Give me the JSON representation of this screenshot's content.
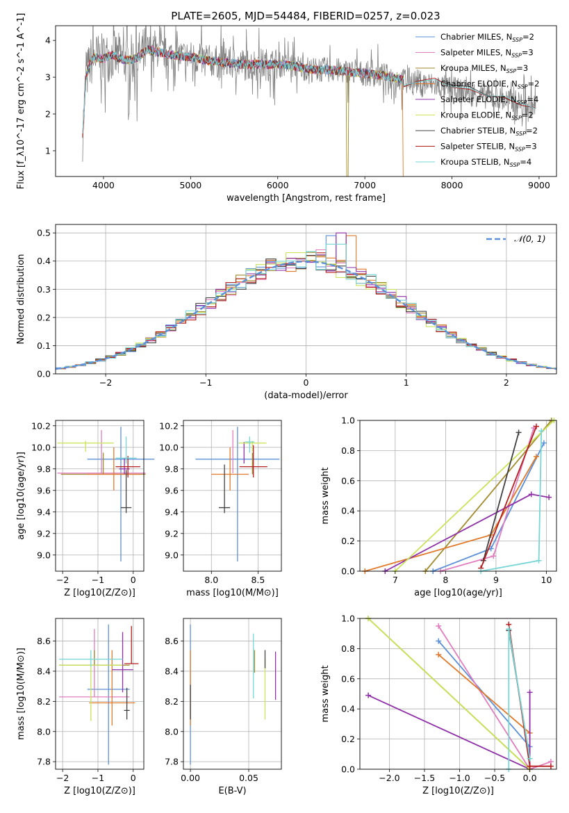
{
  "figure": {
    "title": "PLATE=2605, MJD=54484, FIBERID=0257, z=0.023"
  },
  "series_colors": {
    "Chabrier MILES": "#5b8fd8",
    "Salpeter MILES": "#e17cbf",
    "Kroupa MILES": "#a08a2a",
    "Chabrier ELODIE": "#e0792a",
    "Salpeter ELODIE": "#8e2fa8",
    "Kroupa ELODIE": "#c9e35a",
    "Chabrier STELIB": "#404040",
    "Salpeter STELIB": "#b51d1d",
    "Kroupa STELIB": "#76d6d6",
    "data": "#808080"
  },
  "chart_data": [
    {
      "type": "line",
      "panel": "spectrum",
      "xlabel": "wavelength [Angstrom, rest frame]",
      "ylabel": "Flux [f_λ10^-17 erg cm^-2 s^-1 A^-1]",
      "xlim": [
        3450,
        9200
      ],
      "ylim": [
        0.3,
        4.4
      ],
      "xticks": [
        "4000",
        "5000",
        "6000",
        "7000",
        "8000",
        "9000"
      ],
      "yticks": [
        "1",
        "2",
        "3",
        "4"
      ],
      "legend_position": "upper right",
      "legend": [
        {
          "label": "Chabrier MILES, N",
          "sub": "SSP",
          "tail": "=2",
          "color": "#5b8fd8"
        },
        {
          "label": "Salpeter MILES, N",
          "sub": "SSP",
          "tail": "=3",
          "color": "#e17cbf"
        },
        {
          "label": "Kroupa MILES, N",
          "sub": "SSP",
          "tail": "=3",
          "color": "#a08a2a"
        },
        {
          "label": "Chabrier ELODIE, N",
          "sub": "SSP",
          "tail": "=2",
          "color": "#e0792a"
        },
        {
          "label": "Salpeter ELODIE, N",
          "sub": "SSP",
          "tail": "=4",
          "color": "#8e2fa8"
        },
        {
          "label": "Kroupa ELODIE, N",
          "sub": "SSP",
          "tail": "=2",
          "color": "#c9e35a"
        },
        {
          "label": "Chabrier STELIB, N",
          "sub": "SSP",
          "tail": "=2",
          "color": "#404040"
        },
        {
          "label": "Salpeter STELIB, N",
          "sub": "SSP",
          "tail": "=3",
          "color": "#b51d1d"
        },
        {
          "label": "Kroupa STELIB, N",
          "sub": "SSP",
          "tail": "=4",
          "color": "#76d6d6"
        }
      ],
      "model_continuum": {
        "x": [
          3760,
          3800,
          3850,
          3900,
          3950,
          4000,
          4100,
          4200,
          4300,
          4400,
          4500,
          4600,
          4800,
          5000,
          5200,
          5400,
          5600,
          5800,
          6000,
          6200,
          6400,
          6600,
          6800,
          7000,
          7200,
          7400,
          7450
        ],
        "y": [
          1.4,
          3.0,
          3.4,
          3.55,
          3.5,
          3.5,
          3.6,
          3.5,
          3.45,
          3.55,
          3.75,
          3.7,
          3.6,
          3.55,
          3.45,
          3.4,
          3.35,
          3.35,
          3.35,
          3.3,
          3.2,
          3.2,
          3.15,
          3.1,
          3.05,
          2.95,
          2.9
        ]
      },
      "stelib_continuation": {
        "x": [
          7450,
          7600,
          7800,
          8000,
          8200,
          8400,
          8600,
          8800,
          8950
        ],
        "y": [
          2.75,
          2.85,
          2.95,
          2.75,
          2.7,
          2.5,
          2.45,
          2.25,
          2.15
        ]
      }
    },
    {
      "type": "histogram",
      "panel": "residuals",
      "xlabel": "(data-model)/error",
      "ylabel": "Normed distribution",
      "xlim": [
        -2.5,
        2.5
      ],
      "ylim": [
        0,
        0.53
      ],
      "xticks": [
        "−2",
        "−1",
        "0",
        "1",
        "2"
      ],
      "yticks": [
        "0.0",
        "0.1",
        "0.2",
        "0.3",
        "0.4",
        "0.5"
      ],
      "grid": true,
      "legend_position": "upper right",
      "reference_label": "𝒩(0, 1)",
      "reference_color": "#5b8fd8",
      "bin_width": 0.1,
      "histograms": [
        {
          "model": "Chabrier MILES",
          "peak_shift": 0.25,
          "peak": 0.49
        },
        {
          "model": "Salpeter MILES",
          "peak_shift": 0.15,
          "peak": 0.44
        },
        {
          "model": "Kroupa MILES",
          "peak_shift": -0.1,
          "peak": 0.41
        },
        {
          "model": "Chabrier ELODIE",
          "peak_shift": 0.45,
          "peak": 0.49
        },
        {
          "model": "Salpeter ELODIE",
          "peak_shift": 0.35,
          "peak": 0.5
        },
        {
          "model": "Kroupa ELODIE",
          "peak_shift": -0.1,
          "peak": 0.43
        },
        {
          "model": "Chabrier STELIB",
          "peak_shift": 0.05,
          "peak": 0.42
        },
        {
          "model": "Salpeter STELIB",
          "peak_shift": 0.0,
          "peak": 0.4
        },
        {
          "model": "Kroupa STELIB",
          "peak_shift": 0.3,
          "peak": 0.46
        }
      ]
    },
    {
      "type": "scatter",
      "panel": "age-vs-metallicity",
      "xlabel": "Z [log10(Z/Z⊙)]",
      "ylabel": "age [log10(age/yr)]",
      "xlim": [
        -2.2,
        0.3
      ],
      "ylim": [
        8.85,
        10.25
      ],
      "xticks": [
        "−2",
        "−1",
        "0"
      ],
      "yticks": [
        "9.0",
        "9.2",
        "9.4",
        "9.6",
        "9.8",
        "10.0",
        "10.2"
      ],
      "grid": true,
      "points": [
        {
          "model": "Chabrier MILES",
          "x": -0.35,
          "y": 9.89,
          "xerr": 0.95,
          "yerr": [
            0.95,
            0.3
          ]
        },
        {
          "model": "Salpeter MILES",
          "x": -0.9,
          "y": 9.76,
          "xerr": 1.25,
          "yerr": [
            0.0,
            0.4
          ]
        },
        {
          "model": "Kroupa MILES",
          "x": -0.85,
          "y": 9.75,
          "xerr": 1.2,
          "yerr": [
            0.0,
            0.2
          ]
        },
        {
          "model": "Chabrier ELODIE",
          "x": -0.55,
          "y": 9.75,
          "xerr": 0.75,
          "yerr": [
            0.15,
            0.25
          ]
        },
        {
          "model": "Salpeter ELODIE",
          "x": -0.25,
          "y": 9.8,
          "xerr": 0.15,
          "yerr": [
            0.05,
            0.1
          ]
        },
        {
          "model": "Kroupa ELODIE",
          "x": -1.35,
          "y": 10.04,
          "xerr": 0.8,
          "yerr": [
            0.08,
            0.02
          ]
        },
        {
          "model": "Chabrier STELIB",
          "x": -0.2,
          "y": 9.44,
          "xerr": 0.15,
          "yerr": [
            0.05,
            0.35
          ]
        },
        {
          "model": "Salpeter STELIB",
          "x": -0.15,
          "y": 9.82,
          "xerr": 0.35,
          "yerr": [
            0.1,
            0.1
          ]
        },
        {
          "model": "Kroupa STELIB",
          "x": -0.2,
          "y": 9.9,
          "xerr": 0.3,
          "yerr": [
            0.05,
            0.2
          ]
        }
      ]
    },
    {
      "type": "scatter",
      "panel": "age-vs-mass",
      "xlabel": "mass [log10(M/M⊙)]",
      "ylabel": "",
      "xlim": [
        7.7,
        8.75
      ],
      "ylim": [
        8.85,
        10.25
      ],
      "xticks": [
        "8.0",
        "8.5"
      ],
      "yticks": [
        "9.0",
        "9.2",
        "9.4",
        "9.6",
        "9.8",
        "10.0",
        "10.2"
      ],
      "grid": true,
      "points": [
        {
          "model": "Chabrier MILES",
          "x": 8.28,
          "y": 9.89,
          "xerr": 0.45,
          "yerr": [
            0.95,
            0.3
          ]
        },
        {
          "model": "Salpeter MILES",
          "x": 8.23,
          "y": 9.76,
          "xerr": 0.0,
          "yerr": [
            0.0,
            0.4
          ]
        },
        {
          "model": "Kroupa MILES",
          "x": 8.44,
          "y": 9.75,
          "xerr": 0.0,
          "yerr": [
            0.0,
            0.2
          ]
        },
        {
          "model": "Chabrier ELODIE",
          "x": 8.2,
          "y": 9.75,
          "xerr": 0.2,
          "yerr": [
            0.15,
            0.25
          ]
        },
        {
          "model": "Salpeter ELODIE",
          "x": 8.35,
          "y": 9.95,
          "xerr": 0.0,
          "yerr": [
            0.1,
            0.1
          ]
        },
        {
          "model": "Kroupa ELODIE",
          "x": 8.44,
          "y": 10.04,
          "xerr": 0.15,
          "yerr": [
            0.08,
            0.02
          ]
        },
        {
          "model": "Chabrier STELIB",
          "x": 8.14,
          "y": 9.44,
          "xerr": 0.06,
          "yerr": [
            0.05,
            0.4
          ]
        },
        {
          "model": "Salpeter STELIB",
          "x": 8.45,
          "y": 9.82,
          "xerr": 0.15,
          "yerr": [
            0.1,
            0.2
          ]
        },
        {
          "model": "Kroupa STELIB",
          "x": 8.41,
          "y": 10.05,
          "xerr": 0.05,
          "yerr": [
            0.1,
            0.05
          ]
        }
      ]
    },
    {
      "type": "line",
      "panel": "mass-weight-vs-age",
      "xlabel": "age [log10(age/yr)]",
      "ylabel": "mass weight",
      "xlim": [
        6.3,
        10.2
      ],
      "ylim": [
        0,
        1
      ],
      "xticks": [
        "7",
        "8",
        "9",
        "10"
      ],
      "yticks": [
        "0.0",
        "0.2",
        "0.4",
        "0.6",
        "0.8",
        "1.0"
      ],
      "grid": true,
      "series": [
        {
          "name": "Chabrier MILES",
          "x": [
            7.75,
            8.9,
            9.95
          ],
          "y": [
            0.0,
            0.15,
            0.85
          ]
        },
        {
          "name": "Salpeter MILES",
          "x": [
            7.9,
            8.95,
            9.75
          ],
          "y": [
            0.0,
            0.1,
            0.95
          ]
        },
        {
          "name": "Kroupa MILES",
          "x": [
            7.6,
            10.1
          ],
          "y": [
            0.0,
            1.0
          ]
        },
        {
          "name": "Chabrier ELODIE",
          "x": [
            6.4,
            8.9,
            9.8
          ],
          "y": [
            0.0,
            0.24,
            0.76
          ]
        },
        {
          "name": "Salpeter ELODIE",
          "x": [
            6.8,
            9.7,
            10.05
          ],
          "y": [
            0.0,
            0.51,
            0.49
          ]
        },
        {
          "name": "Kroupa ELODIE",
          "x": [
            7.0,
            10.15
          ],
          "y": [
            0.0,
            1.0
          ]
        },
        {
          "name": "Chabrier STELIB",
          "x": [
            8.75,
            9.45
          ],
          "y": [
            0.07,
            0.92
          ]
        },
        {
          "name": "Salpeter STELIB",
          "x": [
            8.7,
            9.8
          ],
          "y": [
            0.02,
            0.96
          ]
        },
        {
          "name": "Kroupa STELIB",
          "x": [
            8.7,
            9.85,
            9.9
          ],
          "y": [
            0.0,
            0.07,
            0.93
          ]
        }
      ]
    },
    {
      "type": "scatter",
      "panel": "mass-vs-metallicity",
      "xlabel": "Z [log10(Z/Z⊙)]",
      "ylabel": "mass [log10(M/M⊙)]",
      "xlim": [
        -2.2,
        0.3
      ],
      "ylim": [
        7.75,
        8.75
      ],
      "xticks": [
        "−2",
        "−1",
        "0"
      ],
      "yticks": [
        "7.8",
        "8.0",
        "8.2",
        "8.4",
        "8.6"
      ],
      "grid": true,
      "points": [
        {
          "model": "Chabrier MILES",
          "x": -0.7,
          "y": 8.28,
          "xerr": 0.6,
          "yerr": [
            0.5,
            0.43
          ]
        },
        {
          "model": "Salpeter MILES",
          "x": -1.1,
          "y": 8.23,
          "xerr": 1.0,
          "yerr": [
            0.0,
            0.45
          ]
        },
        {
          "model": "Kroupa MILES",
          "x": -1.1,
          "y": 8.44,
          "xerr": 1.0,
          "yerr": [
            0.0,
            0.1
          ]
        },
        {
          "model": "Chabrier ELODIE",
          "x": -0.6,
          "y": 8.19,
          "xerr": 0.65,
          "yerr": [
            0.15,
            0.35
          ]
        },
        {
          "model": "Salpeter ELODIE",
          "x": -0.3,
          "y": 8.41,
          "xerr": 0.3,
          "yerr": [
            0.15,
            0.25
          ]
        },
        {
          "model": "Kroupa ELODIE",
          "x": -1.2,
          "y": 8.44,
          "xerr": 0.9,
          "yerr": [
            0.37,
            0.0
          ]
        },
        {
          "model": "Chabrier STELIB",
          "x": -0.18,
          "y": 8.14,
          "xerr": 0.08,
          "yerr": [
            0.06,
            0.15
          ]
        },
        {
          "model": "Salpeter STELIB",
          "x": -0.05,
          "y": 8.45,
          "xerr": 0.2,
          "yerr": [
            0.0,
            0.25
          ]
        },
        {
          "model": "Kroupa STELIB",
          "x": -1.2,
          "y": 8.48,
          "xerr": 0.9,
          "yerr": [
            0.05,
            0.06
          ]
        }
      ]
    },
    {
      "type": "scatter",
      "panel": "mass-vs-extinction",
      "xlabel": "E(B-V)",
      "ylabel": "",
      "xlim": [
        -0.006,
        0.078
      ],
      "ylim": [
        7.75,
        8.75
      ],
      "xticks": [
        "0.00",
        "0.05"
      ],
      "yticks": [
        "7.8",
        "8.0",
        "8.2",
        "8.4",
        "8.6"
      ],
      "grid": true,
      "points": [
        {
          "model": "Chabrier MILES",
          "x": 0.0,
          "y": 8.28,
          "yerr": [
            0.5,
            0.43
          ]
        },
        {
          "model": "Chabrier ELODIE",
          "x": 0.0,
          "y": 8.19,
          "yerr": [
            0.15,
            0.35
          ]
        },
        {
          "model": "Chabrier STELIB",
          "x": 0.0,
          "y": 8.14,
          "yerr": [
            0.06,
            0.17
          ]
        },
        {
          "model": "Kroupa STELIB",
          "x": 0.054,
          "y": 8.45,
          "yerr": [
            0.23,
            0.2
          ]
        },
        {
          "model": "Kroupa MILES",
          "x": 0.055,
          "y": 8.44,
          "yerr": [
            0.05,
            0.1
          ]
        },
        {
          "model": "Kroupa ELODIE",
          "x": 0.064,
          "y": 8.35,
          "yerr": [
            0.27,
            0.13
          ]
        },
        {
          "model": "Chabrier STELIB",
          "x": 0.064,
          "y": 8.48,
          "yerr": [
            0.06,
            0.06
          ]
        },
        {
          "model": "Salpeter ELODIE",
          "x": 0.073,
          "y": 8.41,
          "yerr": [
            0.2,
            0.12
          ]
        }
      ]
    },
    {
      "type": "line",
      "panel": "mass-weight-vs-metallicity",
      "xlabel": "Z [log10(Z/Z⊙)]",
      "ylabel": "mass weight",
      "xlim": [
        -2.42,
        0.38
      ],
      "ylim": [
        0,
        1
      ],
      "xticks": [
        "−2.0",
        "−1.5",
        "−1.0",
        "−0.5",
        "0.0"
      ],
      "yticks": [
        "0.0",
        "0.2",
        "0.4",
        "0.6",
        "0.8",
        "1.0"
      ],
      "grid": true,
      "series": [
        {
          "name": "Chabrier MILES",
          "x": [
            -1.3,
            0.0
          ],
          "y": [
            0.85,
            0.15
          ]
        },
        {
          "name": "Salpeter MILES",
          "x": [
            -1.3,
            0.0,
            0.3
          ],
          "y": [
            0.95,
            0.0,
            0.05
          ]
        },
        {
          "name": "Kroupa MILES",
          "x": [
            -2.3,
            0.0
          ],
          "y": [
            1.0,
            0.0
          ]
        },
        {
          "name": "Chabrier ELODIE",
          "x": [
            -1.3,
            0.0
          ],
          "y": [
            0.76,
            0.24
          ]
        },
        {
          "name": "Salpeter ELODIE",
          "x": [
            -2.3,
            0.0,
            0.0,
            0.0
          ],
          "y": [
            0.49,
            0.0,
            0.51,
            0.0
          ]
        },
        {
          "name": "Kroupa ELODIE",
          "x": [
            -2.3,
            0.0
          ],
          "y": [
            1.0,
            0.0
          ]
        },
        {
          "name": "Chabrier STELIB",
          "x": [
            -0.3,
            0.0
          ],
          "y": [
            0.92,
            0.07
          ]
        },
        {
          "name": "Salpeter STELIB",
          "x": [
            -0.3,
            0.0,
            0.3
          ],
          "y": [
            0.96,
            0.02,
            0.02
          ]
        },
        {
          "name": "Kroupa STELIB",
          "x": [
            -0.3,
            -0.3,
            0.0
          ],
          "y": [
            0.0,
            0.93,
            0.07
          ]
        }
      ]
    }
  ]
}
